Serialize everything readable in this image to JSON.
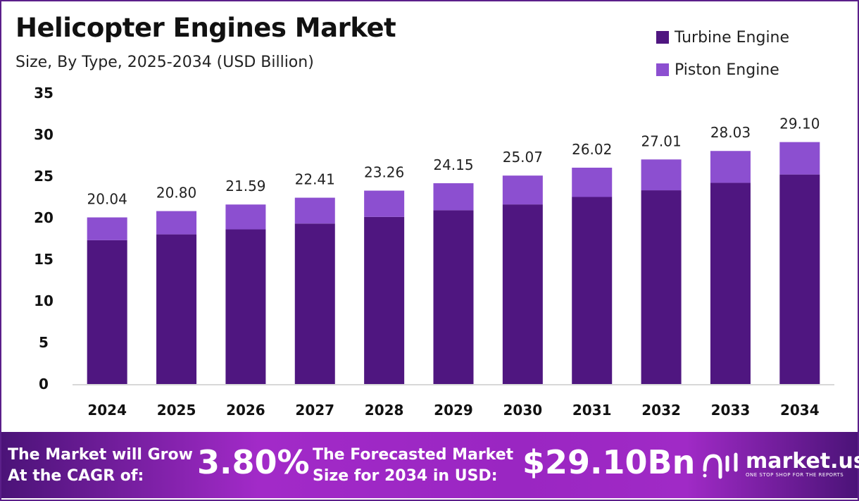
{
  "chart_data": {
    "type": "bar",
    "stacked": true,
    "title": "Helicopter Engines Market",
    "subtitle": "Size, By Type, 2025-2034 (USD Billion)",
    "categories": [
      "2024",
      "2025",
      "2026",
      "2027",
      "2028",
      "2029",
      "2030",
      "2031",
      "2032",
      "2033",
      "2034"
    ],
    "series": [
      {
        "name": "Turbine Engine",
        "color": "#4f1680",
        "values": [
          17.3,
          18.0,
          18.6,
          19.3,
          20.1,
          20.9,
          21.6,
          22.5,
          23.3,
          24.2,
          25.2
        ]
      },
      {
        "name": "Piston Engine",
        "color": "#8c4fd0",
        "values": [
          2.74,
          2.8,
          2.99,
          3.11,
          3.16,
          3.25,
          3.47,
          3.52,
          3.71,
          3.83,
          3.9
        ]
      }
    ],
    "totals": [
      "20.04",
      "20.80",
      "21.59",
      "22.41",
      "23.26",
      "24.15",
      "25.07",
      "26.02",
      "27.01",
      "28.03",
      "29.10"
    ],
    "yticks": [
      "0",
      "5",
      "10",
      "15",
      "20",
      "25",
      "30",
      "35"
    ],
    "ylim": [
      0,
      35
    ],
    "grid": false,
    "legend_position": "top-right"
  },
  "footer": {
    "cagr_label_1": "The Market will Grow",
    "cagr_label_2": "At the CAGR of:",
    "cagr_value": "3.80%",
    "forecast_label_1": "The Forecasted Market",
    "forecast_label_2": "Size for 2034 in USD:",
    "forecast_value": "$29.10Bn",
    "logo_name": "market.us",
    "logo_tagline": "ONE STOP SHOP FOR THE REPORTS"
  }
}
